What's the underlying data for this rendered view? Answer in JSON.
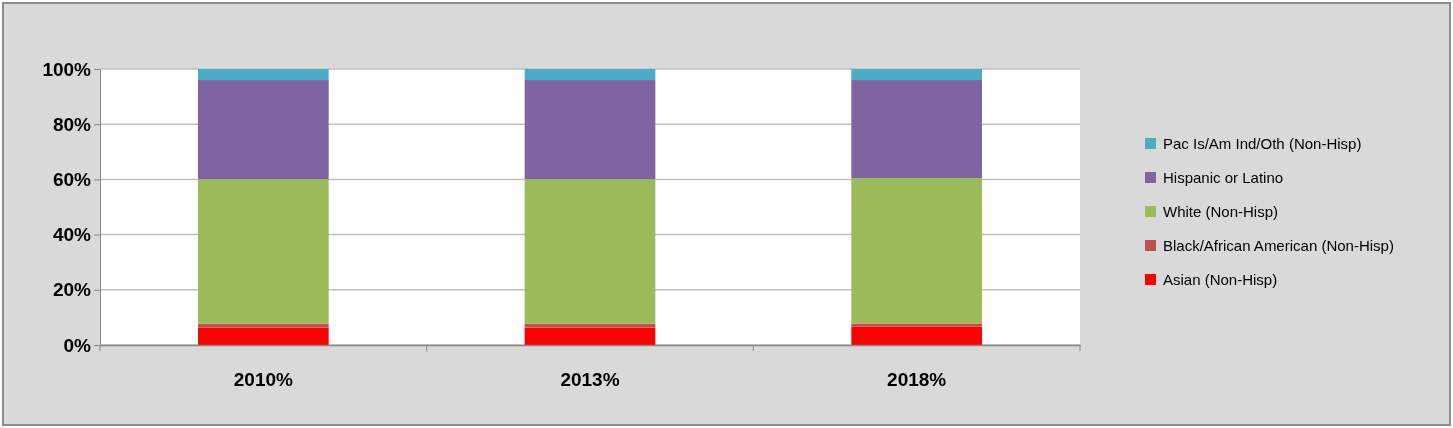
{
  "chart_data": {
    "type": "bar",
    "stacked": true,
    "categories": [
      "2010%",
      "2013%",
      "2018%"
    ],
    "series": [
      {
        "name": "Asian (Non-Hisp)",
        "color": "#ff0000",
        "values": [
          6.3,
          6.3,
          6.7
        ]
      },
      {
        "name": "Black/African American (Non-Hisp)",
        "color": "#c0504d",
        "values": [
          1.4,
          1.4,
          1.1
        ]
      },
      {
        "name": "White (Non-Hisp)",
        "color": "#9bbb59",
        "values": [
          52.4,
          52.4,
          52.7
        ]
      },
      {
        "name": "Hispanic or Latino",
        "color": "#8064a2",
        "values": [
          35.9,
          35.9,
          35.5
        ]
      },
      {
        "name": "Pac Is/Am Ind/Oth (Non-Hisp)",
        "color": "#4bacc6",
        "values": [
          4.0,
          4.0,
          4.0
        ]
      }
    ],
    "ylim": [
      0,
      100
    ],
    "yticks": [
      {
        "value": 0,
        "label": "0%"
      },
      {
        "value": 20,
        "label": "20%"
      },
      {
        "value": 40,
        "label": "40%"
      },
      {
        "value": 60,
        "label": "60%"
      },
      {
        "value": 80,
        "label": "80%"
      },
      {
        "value": 100,
        "label": "100%"
      }
    ],
    "grid": "y",
    "legend": "right"
  }
}
